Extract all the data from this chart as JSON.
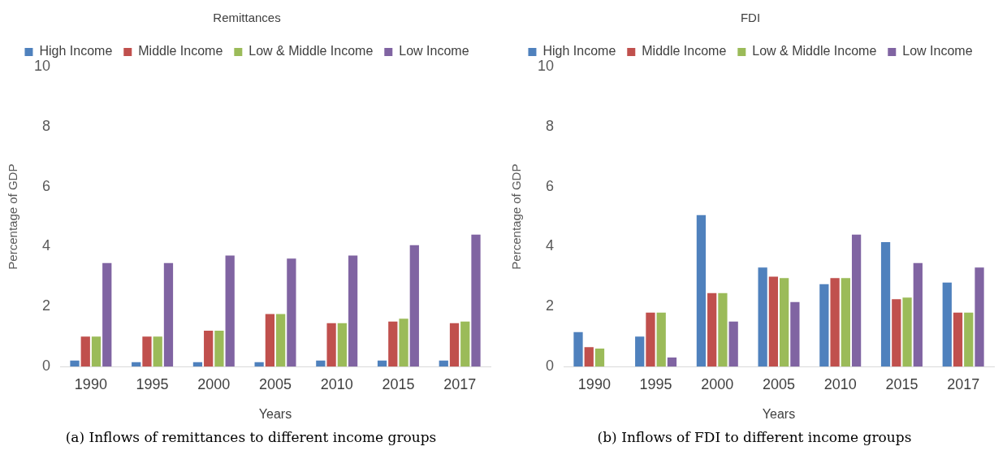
{
  "chart_data": [
    {
      "type": "bar",
      "title": "Remittances",
      "xlabel": "Years",
      "ylabel": "Percentage of GDP",
      "categories": [
        "1990",
        "1995",
        "2000",
        "2005",
        "2010",
        "2015",
        "2017"
      ],
      "series": [
        {
          "name": "High Income",
          "color": "#4f81bd",
          "values": [
            0.2,
            0.15,
            0.15,
            0.15,
            0.2,
            0.2,
            0.2
          ]
        },
        {
          "name": "Middle Income",
          "color": "#c0504d",
          "values": [
            1.0,
            1.0,
            1.2,
            1.75,
            1.45,
            1.5,
            1.45
          ]
        },
        {
          "name": "Low & Middle Income",
          "color": "#9bbb59",
          "values": [
            1.0,
            1.0,
            1.2,
            1.75,
            1.45,
            1.6,
            1.5
          ]
        },
        {
          "name": "Low Income",
          "color": "#8064a2",
          "values": [
            3.45,
            3.45,
            3.7,
            3.6,
            3.7,
            4.05,
            4.4
          ]
        }
      ],
      "ylim": [
        0,
        10
      ],
      "yticks": [
        0,
        2,
        4,
        6,
        8,
        10
      ],
      "grid": false,
      "legend": "top",
      "annotations": [
        "(a) Inflows of remittances to different income groups"
      ]
    },
    {
      "type": "bar",
      "title": "FDI",
      "xlabel": "Years",
      "ylabel": "Percentage of GDP",
      "categories": [
        "1990",
        "1995",
        "2000",
        "2005",
        "2010",
        "2015",
        "2017"
      ],
      "series": [
        {
          "name": "High Income",
          "color": "#4f81bd",
          "values": [
            1.15,
            1.0,
            5.05,
            3.3,
            2.75,
            4.15,
            2.8
          ]
        },
        {
          "name": "Middle Income",
          "color": "#c0504d",
          "values": [
            0.65,
            1.8,
            2.45,
            3.0,
            2.95,
            2.25,
            1.8
          ]
        },
        {
          "name": "Low & Middle Income",
          "color": "#9bbb59",
          "values": [
            0.6,
            1.8,
            2.45,
            2.95,
            2.95,
            2.3,
            1.8
          ]
        },
        {
          "name": "Low Income",
          "color": "#8064a2",
          "values": [
            null,
            0.3,
            1.5,
            2.15,
            4.4,
            3.45,
            3.3
          ]
        }
      ],
      "ylim": [
        0,
        10
      ],
      "yticks": [
        0,
        2,
        4,
        6,
        8,
        10
      ],
      "grid": false,
      "legend": "top",
      "annotations": [
        "(b) Inflows of FDI to different income groups"
      ]
    }
  ]
}
